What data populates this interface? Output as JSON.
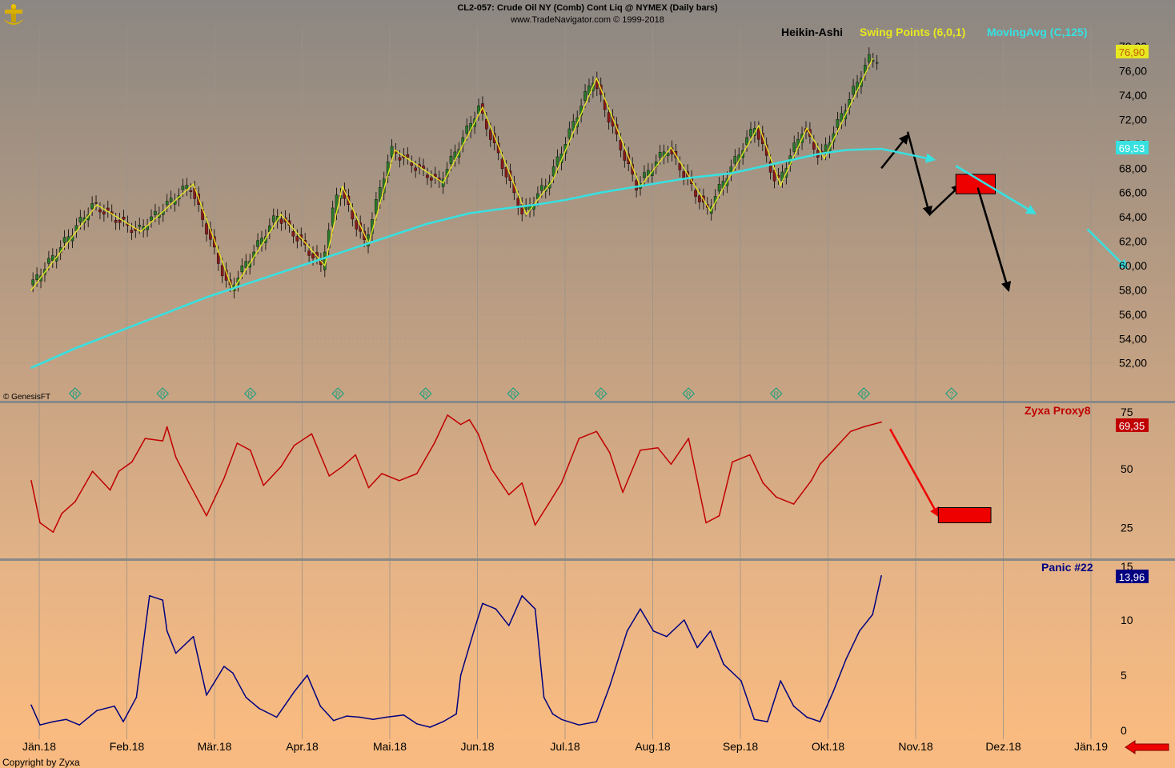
{
  "header": {
    "line1": "CL2-057:  Crude Oil NY (Comb) Cont Liq @ NYMEX  (Daily bars)",
    "line2": "www.TradeNavigator.com © 1999-2018"
  },
  "footer": {
    "copyright": "Copyright by Zyxa",
    "watermark": "© GenesisFT"
  },
  "colors": {
    "price_line": "#e8e820",
    "ma": "#38e0e0",
    "proxy": "#c00000",
    "panic": "#000080",
    "box": "#ee0000",
    "black_arrow": "#000000",
    "footer_arrow": "#ee0000"
  },
  "icons": [
    "trade-navigator-logo-icon",
    "r-marker-icon",
    "question-marker-icon",
    "left-arrow-icon"
  ],
  "chart_data": [
    {
      "type": "line",
      "panel": "price",
      "legend": [
        "Heikin-Ashi",
        "Swing Points (6,0,1)",
        "MovingAvg (C,125)"
      ],
      "x_ticks": [
        "Jän.18",
        "Feb.18",
        "Mär.18",
        "Apr.18",
        "Mai.18",
        "Jun.18",
        "Jul.18",
        "Aug.18",
        "Sep.18",
        "Okt.18",
        "Nov.18",
        "Dez.18",
        "Jän.19"
      ],
      "y_ticks": [
        "52,00",
        "54,00",
        "56,00",
        "58,00",
        "60,00",
        "62,00",
        "64,00",
        "66,00",
        "68,00",
        "70,00",
        "72,00",
        "74,00",
        "76,00",
        "78,00"
      ],
      "ylim": [
        50.8,
        78.8
      ],
      "last_values": {
        "high_label": "76,90",
        "ma_label": "69,53"
      },
      "series": [
        {
          "name": "Swing Points (6,0,1)",
          "x": [
            0.0,
            0.75,
            1.25,
            1.85,
            2.3,
            2.85,
            3.35,
            3.55,
            3.85,
            4.15,
            4.7,
            5.15,
            5.65,
            5.95,
            6.45,
            6.95,
            7.3,
            7.75,
            8.3,
            8.55,
            8.85,
            9.05,
            9.6
          ],
          "y": [
            58.0,
            65.0,
            62.8,
            66.7,
            58.0,
            64.2,
            60.0,
            66.5,
            61.8,
            69.5,
            66.8,
            73.0,
            64.2,
            67.0,
            75.4,
            66.5,
            69.7,
            64.5,
            71.5,
            66.6,
            71.3,
            68.8,
            77.0
          ]
        },
        {
          "name": "MovingAvg (C,125)",
          "x": [
            0.0,
            0.5,
            1.0,
            1.5,
            2.0,
            2.5,
            3.0,
            3.5,
            4.0,
            4.5,
            5.0,
            5.3,
            5.75,
            6.1,
            6.5,
            7.0,
            7.5,
            8.0,
            8.5,
            9.0,
            9.3,
            9.7
          ],
          "y": [
            51.6,
            53.2,
            54.6,
            56.0,
            57.4,
            58.6,
            59.8,
            61.0,
            62.2,
            63.4,
            64.3,
            64.6,
            65.0,
            65.4,
            66.0,
            66.6,
            67.2,
            67.6,
            68.4,
            69.2,
            69.5,
            69.6
          ]
        }
      ],
      "annotations": {
        "forecast_black_arrows": [
          {
            "from": [
              9.7,
              68.0
            ],
            "to": [
              10.0,
              70.7
            ]
          },
          {
            "from": [
              10.0,
              71.0
            ],
            "to": [
              10.25,
              64.2
            ]
          },
          {
            "from": [
              10.25,
              64.2
            ],
            "to": [
              10.6,
              66.6
            ]
          },
          {
            "from": [
              10.8,
              66.4
            ],
            "to": [
              11.15,
              58.0
            ]
          }
        ],
        "forecast_cyan_arrows": [
          {
            "from": [
              9.7,
              69.6
            ],
            "to": [
              10.3,
              68.7
            ]
          },
          {
            "from": [
              10.55,
              68.2
            ],
            "to": [
              11.45,
              64.3
            ]
          },
          {
            "from": [
              12.05,
              63.0
            ],
            "to": [
              12.5,
              59.8
            ]
          }
        ],
        "red_box": {
          "x": [
            10.55,
            11.0
          ],
          "y": [
            65.9,
            67.5
          ]
        },
        "markers": {
          "x": [
            0.5,
            1.5,
            2.5,
            3.5,
            4.5,
            5.5,
            6.5,
            7.5,
            8.5,
            9.5,
            10.5
          ],
          "kinds": [
            "R",
            "R",
            "R",
            "R",
            "R",
            "R",
            "R",
            "R",
            "R",
            "R",
            "?"
          ]
        }
      }
    },
    {
      "type": "line",
      "panel": "indicator",
      "title": "Zyxa Proxy8",
      "y_ticks": [
        "25",
        "50",
        "75"
      ],
      "ylim": [
        20,
        75
      ],
      "last_value_label": "69,35",
      "series": [
        {
          "name": "Zyxa Proxy8",
          "x": [
            0.0,
            0.1,
            0.25,
            0.35,
            0.5,
            0.7,
            0.9,
            1.0,
            1.15,
            1.3,
            1.5,
            1.55,
            1.65,
            1.8,
            2.0,
            2.2,
            2.35,
            2.5,
            2.65,
            2.85,
            3.0,
            3.2,
            3.4,
            3.55,
            3.7,
            3.85,
            4.0,
            4.2,
            4.4,
            4.6,
            4.75,
            4.9,
            5.0,
            5.1,
            5.25,
            5.45,
            5.6,
            5.75,
            5.9,
            6.05,
            6.25,
            6.45,
            6.6,
            6.75,
            6.95,
            7.15,
            7.3,
            7.5,
            7.7,
            7.85,
            8.0,
            8.2,
            8.35,
            8.5,
            8.7,
            8.9,
            9.0,
            9.15,
            9.35,
            9.5,
            9.7
          ],
          "y": [
            45,
            27,
            23,
            31,
            36,
            49,
            41,
            49,
            53,
            63,
            62,
            68,
            55,
            44,
            30,
            46,
            61,
            58,
            43,
            51,
            60,
            65,
            47,
            51,
            56,
            42,
            48,
            45,
            48,
            61,
            73,
            69,
            71,
            65,
            50,
            39,
            44,
            26,
            35,
            44,
            63,
            66,
            57,
            40,
            58,
            59,
            52,
            63,
            27,
            30,
            53,
            56,
            44,
            38,
            35,
            45,
            52,
            58,
            66,
            68,
            70
          ]
        }
      ],
      "annotations": {
        "red_arrow": {
          "from": [
            9.8,
            67.0
          ],
          "to": [
            10.35,
            30.0
          ]
        },
        "red_box": {
          "x": [
            10.35,
            10.95
          ],
          "y": [
            27.0,
            33.5
          ]
        }
      }
    },
    {
      "type": "line",
      "panel": "indicator",
      "title": "Panic #22",
      "y_ticks": [
        "0",
        "5",
        "10",
        "15"
      ],
      "ylim": [
        -0.5,
        15
      ],
      "last_value_label": "13,96",
      "series": [
        {
          "name": "Panic #22",
          "x": [
            0.0,
            0.1,
            0.25,
            0.4,
            0.55,
            0.75,
            0.95,
            1.05,
            1.2,
            1.35,
            1.5,
            1.55,
            1.65,
            1.85,
            2.0,
            2.1,
            2.2,
            2.3,
            2.45,
            2.6,
            2.8,
            3.0,
            3.15,
            3.3,
            3.45,
            3.6,
            3.75,
            3.9,
            4.05,
            4.25,
            4.4,
            4.55,
            4.7,
            4.85,
            4.9,
            5.05,
            5.15,
            5.3,
            5.45,
            5.6,
            5.75,
            5.85,
            5.95,
            6.05,
            6.25,
            6.45,
            6.6,
            6.8,
            6.95,
            7.1,
            7.25,
            7.45,
            7.6,
            7.75,
            7.9,
            8.1,
            8.25,
            8.4,
            8.55,
            8.7,
            8.85,
            9.0,
            9.15,
            9.3,
            9.45,
            9.6,
            9.7
          ],
          "y": [
            2.3,
            0.5,
            0.8,
            1.0,
            0.5,
            1.8,
            2.2,
            0.8,
            3.0,
            12.2,
            11.8,
            9.0,
            7.0,
            8.5,
            3.2,
            4.5,
            5.8,
            5.2,
            3.0,
            2.0,
            1.2,
            3.5,
            5.0,
            2.2,
            0.9,
            1.3,
            1.2,
            1.0,
            1.2,
            1.4,
            0.6,
            0.3,
            0.8,
            1.5,
            5.0,
            9.0,
            11.5,
            11.0,
            9.5,
            12.2,
            11.0,
            3.0,
            1.5,
            1.0,
            0.5,
            0.8,
            4.0,
            9.0,
            11.0,
            9.0,
            8.5,
            10.0,
            7.5,
            9.0,
            6.0,
            4.5,
            1.0,
            0.8,
            4.5,
            2.2,
            1.2,
            0.8,
            3.5,
            6.5,
            9.0,
            10.5,
            14.0
          ]
        }
      ]
    }
  ]
}
